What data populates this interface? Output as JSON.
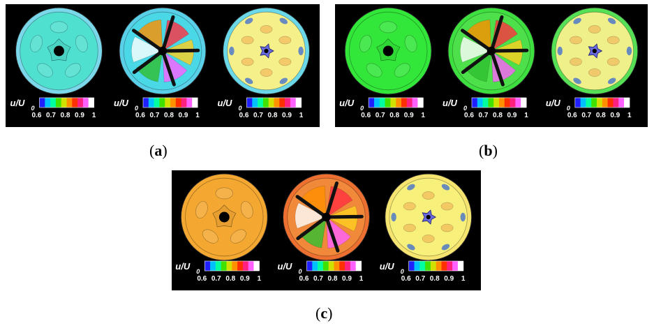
{
  "panels": [
    {
      "id": "a",
      "caption_letter": "a",
      "cells": [
        {
          "base": "#4fe0d0",
          "ring": "#7ad8ea",
          "variant": "inlet"
        },
        {
          "base": "#4ad8e6",
          "ring": "#5ad0e8",
          "variant": "blades"
        },
        {
          "base": "#f5f08a",
          "ring": "#6ad8e8",
          "variant": "wake"
        }
      ]
    },
    {
      "id": "b",
      "caption_letter": "b",
      "cells": [
        {
          "base": "#33e63a",
          "ring": "#33e63a",
          "variant": "inlet"
        },
        {
          "base": "#4ee04a",
          "ring": "#3ee040",
          "variant": "blades"
        },
        {
          "base": "#f0f08a",
          "ring": "#55e055",
          "variant": "wake"
        }
      ]
    },
    {
      "id": "c",
      "caption_letter": "c",
      "cells": [
        {
          "base": "#f4a832",
          "ring": "#f4a832",
          "variant": "inlet"
        },
        {
          "base": "#f08a3a",
          "ring": "#ee7030",
          "variant": "blades"
        },
        {
          "base": "#f7f07a",
          "ring": "#f5e570",
          "variant": "wake"
        }
      ]
    }
  ],
  "colorbar": {
    "label_main": "u/U",
    "label_sub": "0",
    "ticks": [
      "0.6",
      "0.7",
      "0.8",
      "0.9",
      "1"
    ],
    "colors": [
      "#2020ff",
      "#00c0ff",
      "#00ffa0",
      "#40e000",
      "#d0e000",
      "#ff9000",
      "#ff3000",
      "#ff2080",
      "#ff60ff",
      "#ffffff"
    ]
  },
  "captions": {
    "open": "(",
    "close": ")"
  }
}
